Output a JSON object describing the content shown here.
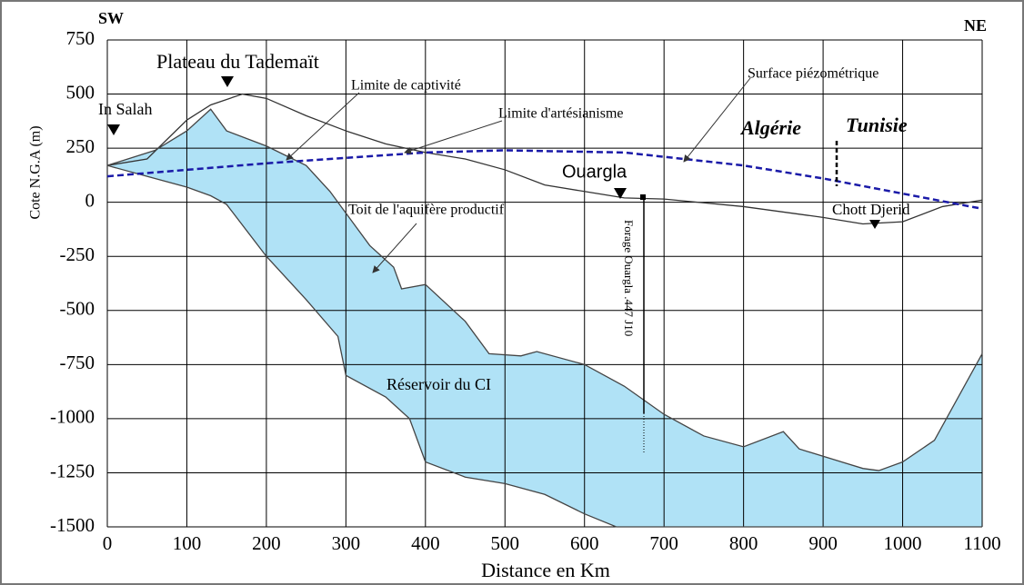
{
  "chart_data": {
    "type": "cross-section",
    "x_label": "Distance en Km",
    "y_label": "Cote N.G.A (m)",
    "xlim": [
      0,
      1100
    ],
    "ylim": [
      -1500,
      750
    ],
    "xticks": [
      0,
      100,
      200,
      300,
      400,
      500,
      600,
      700,
      800,
      900,
      1000,
      1100
    ],
    "yticks": [
      750,
      500,
      250,
      0,
      -250,
      -500,
      -750,
      -1000,
      -1250,
      -1500
    ],
    "grid": true,
    "background": "#ffffff",
    "series": [
      {
        "color": "#333333",
        "style": "solid",
        "x": [
          0,
          50,
          100,
          130,
          170,
          200,
          250,
          300,
          350,
          400,
          450,
          500,
          550,
          600,
          650,
          700,
          800,
          900,
          950,
          1000,
          1050,
          1100
        ],
        "values": [
          170,
          200,
          380,
          450,
          500,
          480,
          400,
          330,
          270,
          230,
          200,
          150,
          80,
          50,
          20,
          15,
          -20,
          -70,
          -100,
          -90,
          -20,
          10
        ]
      },
      {
        "color": "#444444",
        "style": "solid",
        "fill": "#b0e2f6",
        "x": [
          0,
          60,
          100,
          130,
          150,
          200,
          250,
          280,
          300,
          330,
          360,
          370,
          400,
          450,
          480,
          520,
          540,
          600,
          650,
          700,
          750,
          800,
          850,
          870,
          950,
          970,
          1000,
          1040,
          1100
        ],
        "values": [
          170,
          240,
          330,
          430,
          330,
          260,
          170,
          50,
          -50,
          -200,
          -300,
          -400,
          -380,
          -550,
          -700,
          -710,
          -690,
          -750,
          -850,
          -980,
          -1080,
          -1130,
          -1060,
          -1140,
          -1230,
          -1240,
          -1200,
          -1100,
          -700
        ]
      },
      {
        "color": "#444444",
        "style": "solid",
        "x": [
          0,
          50,
          100,
          130,
          150,
          200,
          250,
          290,
          300,
          350,
          380,
          400,
          450,
          500,
          550,
          600,
          640,
          1100
        ],
        "values": [
          170,
          120,
          70,
          30,
          -10,
          -250,
          -450,
          -620,
          -800,
          -900,
          -1000,
          -1200,
          -1270,
          -1300,
          -1350,
          -1440,
          -1500,
          -1500
        ]
      },
      {
        "color": "#1a1aa8",
        "style": "dashed",
        "x": [
          0,
          200,
          400,
          500,
          650,
          800,
          900,
          1000,
          1100
        ],
        "values": [
          120,
          180,
          230,
          240,
          230,
          170,
          110,
          40,
          -30
        ]
      }
    ],
    "annotations": [
      "SW",
      "NE",
      "Plateau du Tademaït",
      "In Salah",
      "Limite de captivité",
      "Limite d'artésianisme",
      "Surface piézométrique",
      "Algérie",
      "Tunisie",
      "Ouargla",
      "Chott Djerid",
      "Toit de l'aquifère productif",
      "Forage Ouargla .447 J10",
      "Réservoir du CI"
    ]
  }
}
